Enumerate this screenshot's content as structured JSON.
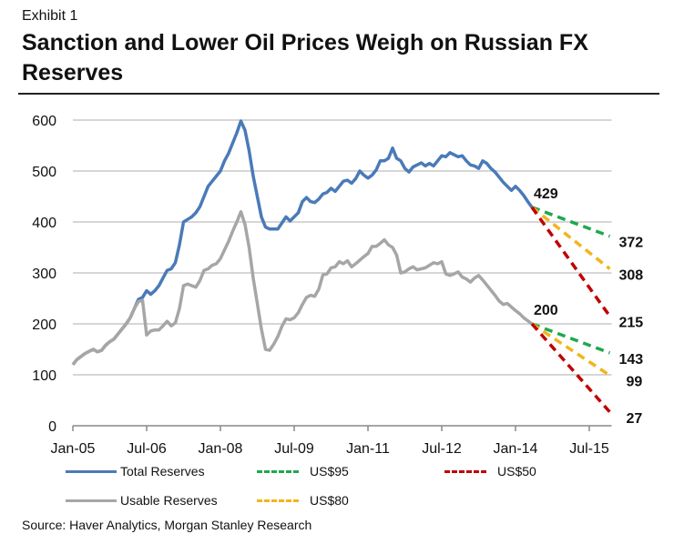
{
  "exhibit": "Exhibit 1",
  "title": "Sanction and Lower Oil Prices Weigh on Russian FX Reserves",
  "source": "Source: Haver Analytics, Morgan Stanley Research",
  "colors": {
    "total": "#4a7ab8",
    "usable": "#a6a6a6",
    "us95": "#1fa84f",
    "us80": "#f2b51d",
    "us50": "#c00000",
    "grid": "#c8c8c8"
  },
  "legend": [
    {
      "key": "total",
      "label": "Total Reserves",
      "style": "solid"
    },
    {
      "key": "us95",
      "label": "US$95",
      "style": "dashed"
    },
    {
      "key": "us50",
      "label": "US$50",
      "style": "dashed"
    },
    {
      "key": "usable",
      "label": "Usable Reserves",
      "style": "solid"
    },
    {
      "key": "us80",
      "label": "US$80",
      "style": "dashed"
    }
  ],
  "chart_data": {
    "type": "line",
    "title": "Sanction and Lower Oil Prices Weigh on Russian FX Reserves",
    "xlabel": "",
    "ylabel": "",
    "x_unit": "months since Jan-05",
    "xlim": [
      0,
      131
    ],
    "ylim": [
      0,
      600
    ],
    "yticks": [
      0,
      100,
      200,
      300,
      400,
      500,
      600
    ],
    "xticks": [
      {
        "m": 0,
        "label": "Jan-05"
      },
      {
        "m": 18,
        "label": "Jul-06"
      },
      {
        "m": 36,
        "label": "Jan-08"
      },
      {
        "m": 54,
        "label": "Jul-09"
      },
      {
        "m": 72,
        "label": "Jan-11"
      },
      {
        "m": 90,
        "label": "Jul-12"
      },
      {
        "m": 108,
        "label": "Jan-14"
      },
      {
        "m": 126,
        "label": "Jul-15"
      }
    ],
    "grid": true,
    "legend_position": "bottom",
    "series": [
      {
        "name": "Total Reserves",
        "key": "total",
        "style": "solid",
        "points": [
          [
            0,
            120
          ],
          [
            1,
            130
          ],
          [
            2,
            136
          ],
          [
            3,
            142
          ],
          [
            4,
            146
          ],
          [
            5,
            150
          ],
          [
            6,
            145
          ],
          [
            7,
            148
          ],
          [
            8,
            158
          ],
          [
            9,
            165
          ],
          [
            10,
            170
          ],
          [
            11,
            180
          ],
          [
            12,
            190
          ],
          [
            13,
            200
          ],
          [
            14,
            212
          ],
          [
            15,
            230
          ],
          [
            16,
            248
          ],
          [
            17,
            252
          ],
          [
            18,
            265
          ],
          [
            19,
            258
          ],
          [
            20,
            265
          ],
          [
            21,
            275
          ],
          [
            22,
            290
          ],
          [
            23,
            305
          ],
          [
            24,
            308
          ],
          [
            25,
            320
          ],
          [
            26,
            355
          ],
          [
            27,
            400
          ],
          [
            28,
            405
          ],
          [
            29,
            410
          ],
          [
            30,
            418
          ],
          [
            31,
            430
          ],
          [
            32,
            450
          ],
          [
            33,
            470
          ],
          [
            34,
            480
          ],
          [
            35,
            490
          ],
          [
            36,
            500
          ],
          [
            37,
            520
          ],
          [
            38,
            535
          ],
          [
            39,
            555
          ],
          [
            40,
            575
          ],
          [
            41,
            598
          ],
          [
            42,
            580
          ],
          [
            43,
            540
          ],
          [
            44,
            490
          ],
          [
            45,
            450
          ],
          [
            46,
            410
          ],
          [
            47,
            390
          ],
          [
            48,
            386
          ],
          [
            49,
            386
          ],
          [
            50,
            386
          ],
          [
            51,
            398
          ],
          [
            52,
            410
          ],
          [
            53,
            402
          ],
          [
            54,
            410
          ],
          [
            55,
            418
          ],
          [
            56,
            440
          ],
          [
            57,
            448
          ],
          [
            58,
            440
          ],
          [
            59,
            438
          ],
          [
            60,
            445
          ],
          [
            61,
            455
          ],
          [
            62,
            458
          ],
          [
            63,
            466
          ],
          [
            64,
            460
          ],
          [
            65,
            470
          ],
          [
            66,
            480
          ],
          [
            67,
            482
          ],
          [
            68,
            476
          ],
          [
            69,
            485
          ],
          [
            70,
            500
          ],
          [
            71,
            492
          ],
          [
            72,
            486
          ],
          [
            73,
            492
          ],
          [
            74,
            502
          ],
          [
            75,
            520
          ],
          [
            76,
            520
          ],
          [
            77,
            525
          ],
          [
            78,
            545
          ],
          [
            79,
            525
          ],
          [
            80,
            520
          ],
          [
            81,
            505
          ],
          [
            82,
            498
          ],
          [
            83,
            508
          ],
          [
            84,
            512
          ],
          [
            85,
            516
          ],
          [
            86,
            510
          ],
          [
            87,
            515
          ],
          [
            88,
            510
          ],
          [
            89,
            520
          ],
          [
            90,
            530
          ],
          [
            91,
            528
          ],
          [
            92,
            536
          ],
          [
            93,
            532
          ],
          [
            94,
            528
          ],
          [
            95,
            530
          ],
          [
            96,
            520
          ],
          [
            97,
            512
          ],
          [
            98,
            510
          ],
          [
            99,
            505
          ],
          [
            100,
            520
          ],
          [
            101,
            515
          ],
          [
            102,
            505
          ],
          [
            103,
            498
          ],
          [
            104,
            488
          ],
          [
            105,
            478
          ],
          [
            106,
            470
          ],
          [
            107,
            462
          ],
          [
            108,
            470
          ],
          [
            109,
            462
          ],
          [
            110,
            452
          ],
          [
            111,
            440
          ],
          [
            112,
            429
          ]
        ]
      },
      {
        "name": "Usable Reserves",
        "key": "usable",
        "style": "solid",
        "points": [
          [
            0,
            120
          ],
          [
            1,
            130
          ],
          [
            2,
            136
          ],
          [
            3,
            142
          ],
          [
            4,
            146
          ],
          [
            5,
            150
          ],
          [
            6,
            145
          ],
          [
            7,
            148
          ],
          [
            8,
            158
          ],
          [
            9,
            165
          ],
          [
            10,
            170
          ],
          [
            11,
            180
          ],
          [
            12,
            190
          ],
          [
            13,
            200
          ],
          [
            14,
            212
          ],
          [
            15,
            230
          ],
          [
            16,
            244
          ],
          [
            17,
            246
          ],
          [
            18,
            178
          ],
          [
            19,
            186
          ],
          [
            20,
            188
          ],
          [
            21,
            188
          ],
          [
            22,
            196
          ],
          [
            23,
            205
          ],
          [
            24,
            196
          ],
          [
            25,
            202
          ],
          [
            26,
            230
          ],
          [
            27,
            275
          ],
          [
            28,
            278
          ],
          [
            29,
            275
          ],
          [
            30,
            272
          ],
          [
            31,
            285
          ],
          [
            32,
            305
          ],
          [
            33,
            308
          ],
          [
            34,
            315
          ],
          [
            35,
            318
          ],
          [
            36,
            328
          ],
          [
            37,
            345
          ],
          [
            38,
            362
          ],
          [
            39,
            382
          ],
          [
            40,
            400
          ],
          [
            41,
            420
          ],
          [
            42,
            395
          ],
          [
            43,
            350
          ],
          [
            44,
            290
          ],
          [
            45,
            240
          ],
          [
            46,
            190
          ],
          [
            47,
            150
          ],
          [
            48,
            148
          ],
          [
            49,
            160
          ],
          [
            50,
            175
          ],
          [
            51,
            195
          ],
          [
            52,
            210
          ],
          [
            53,
            208
          ],
          [
            54,
            212
          ],
          [
            55,
            222
          ],
          [
            56,
            238
          ],
          [
            57,
            252
          ],
          [
            58,
            256
          ],
          [
            59,
            254
          ],
          [
            60,
            268
          ],
          [
            61,
            296
          ],
          [
            62,
            298
          ],
          [
            63,
            310
          ],
          [
            64,
            312
          ],
          [
            65,
            322
          ],
          [
            66,
            318
          ],
          [
            67,
            324
          ],
          [
            68,
            312
          ],
          [
            69,
            318
          ],
          [
            70,
            325
          ],
          [
            71,
            332
          ],
          [
            72,
            338
          ],
          [
            73,
            352
          ],
          [
            74,
            352
          ],
          [
            75,
            358
          ],
          [
            76,
            365
          ],
          [
            77,
            355
          ],
          [
            78,
            350
          ],
          [
            79,
            335
          ],
          [
            80,
            300
          ],
          [
            81,
            302
          ],
          [
            82,
            308
          ],
          [
            83,
            312
          ],
          [
            84,
            306
          ],
          [
            85,
            308
          ],
          [
            86,
            310
          ],
          [
            87,
            315
          ],
          [
            88,
            320
          ],
          [
            89,
            318
          ],
          [
            90,
            322
          ],
          [
            91,
            298
          ],
          [
            92,
            295
          ],
          [
            93,
            298
          ],
          [
            94,
            302
          ],
          [
            95,
            292
          ],
          [
            96,
            288
          ],
          [
            97,
            282
          ],
          [
            98,
            290
          ],
          [
            99,
            295
          ],
          [
            100,
            286
          ],
          [
            101,
            276
          ],
          [
            102,
            266
          ],
          [
            103,
            256
          ],
          [
            104,
            245
          ],
          [
            105,
            238
          ],
          [
            106,
            240
          ],
          [
            107,
            233
          ],
          [
            108,
            226
          ],
          [
            109,
            220
          ],
          [
            110,
            212
          ],
          [
            111,
            206
          ],
          [
            112,
            200
          ]
        ]
      },
      {
        "name": "US$95 (Total)",
        "key": "us95",
        "style": "dashed",
        "points": [
          [
            112,
            429
          ],
          [
            131,
            372
          ]
        ]
      },
      {
        "name": "US$80 (Total)",
        "key": "us80",
        "style": "dashed",
        "points": [
          [
            112,
            429
          ],
          [
            131,
            308
          ]
        ]
      },
      {
        "name": "US$50 (Total)",
        "key": "us50",
        "style": "dashed",
        "points": [
          [
            112,
            429
          ],
          [
            131,
            215
          ]
        ]
      },
      {
        "name": "US$95 (Usable)",
        "key": "us95",
        "style": "dashed",
        "points": [
          [
            112,
            200
          ],
          [
            131,
            143
          ]
        ]
      },
      {
        "name": "US$80 (Usable)",
        "key": "us80",
        "style": "dashed",
        "points": [
          [
            112,
            200
          ],
          [
            131,
            99
          ]
        ]
      },
      {
        "name": "US$50 (Usable)",
        "key": "us50",
        "style": "dashed",
        "points": [
          [
            112,
            200
          ],
          [
            131,
            27
          ]
        ]
      }
    ],
    "annotations": [
      {
        "text": "429",
        "m": 112,
        "v": 429,
        "pos": "above-start"
      },
      {
        "text": "200",
        "m": 112,
        "v": 200,
        "pos": "above-start"
      },
      {
        "text": "372",
        "m": 131,
        "v": 372,
        "pos": "end"
      },
      {
        "text": "308",
        "m": 131,
        "v": 308,
        "pos": "end"
      },
      {
        "text": "215",
        "m": 131,
        "v": 215,
        "pos": "end"
      },
      {
        "text": "143",
        "m": 131,
        "v": 143,
        "pos": "end"
      },
      {
        "text": "99",
        "m": 131,
        "v": 99,
        "pos": "end"
      },
      {
        "text": "27",
        "m": 131,
        "v": 27,
        "pos": "end"
      }
    ]
  }
}
